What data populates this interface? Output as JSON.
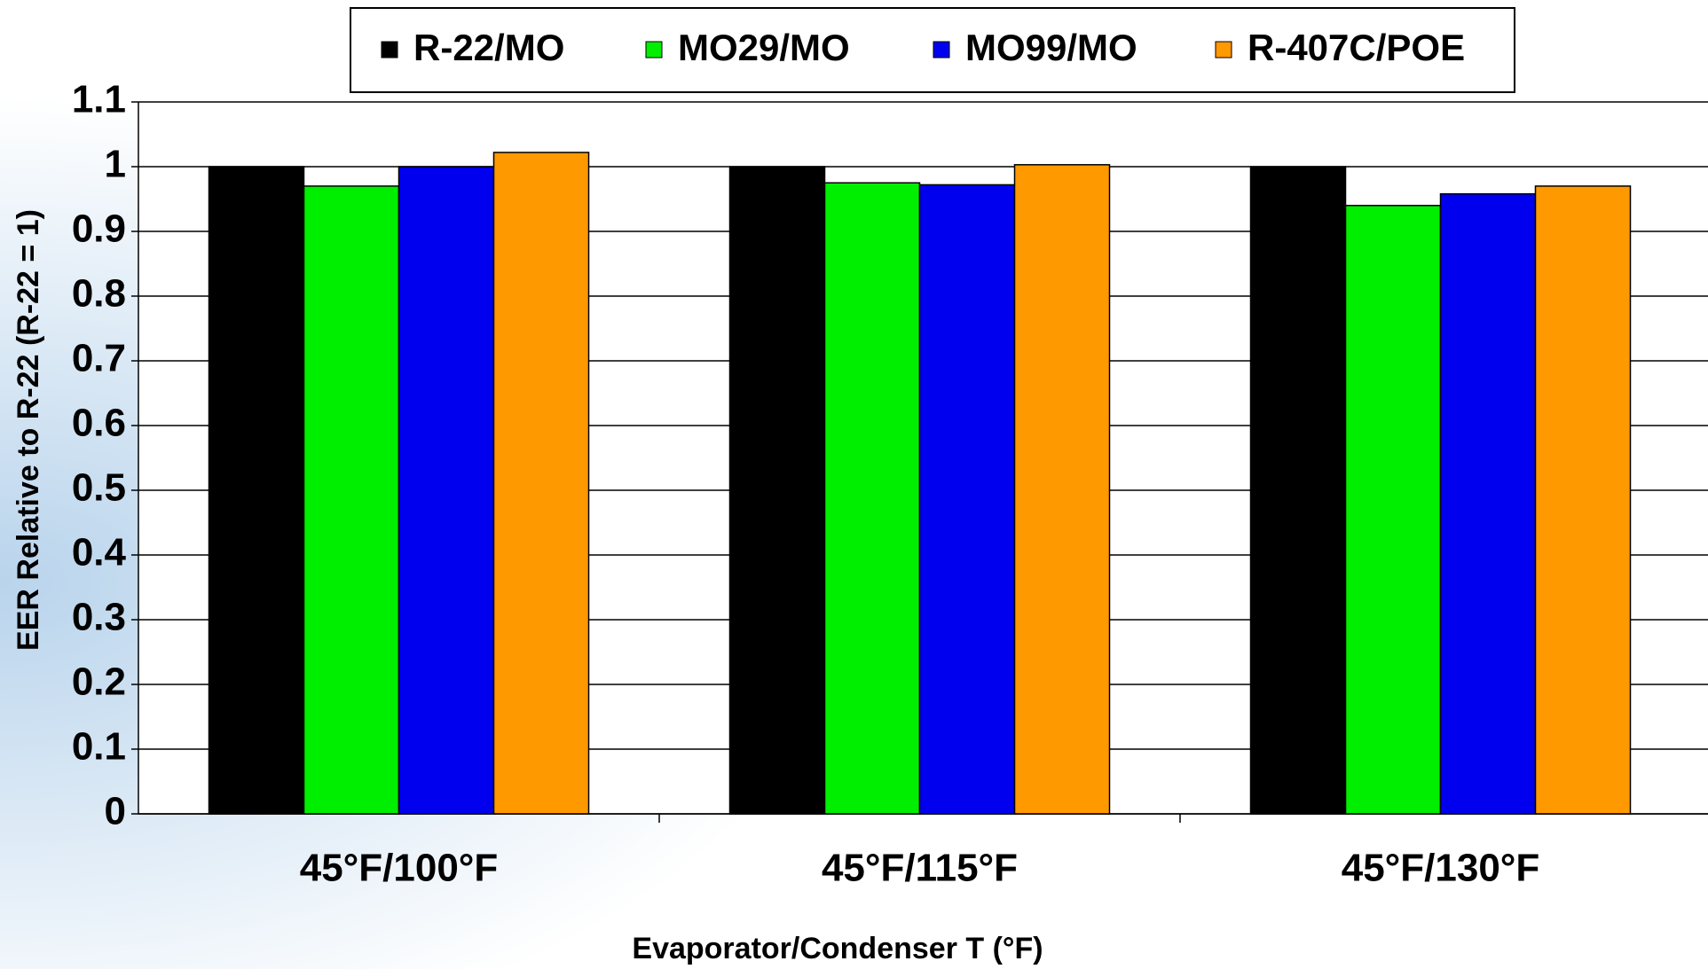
{
  "chart_data": {
    "type": "bar",
    "x_label": "Evaporator/Condenser T (°F)",
    "y_label": "EER Relative to R-22 (R-22 = 1)",
    "categories": [
      "45°F/100°F",
      "45°F/115°F",
      "45°F/130°F"
    ],
    "series": [
      {
        "name": "R-22/MO",
        "color": "#000000",
        "values": [
          1.0,
          1.0,
          1.0
        ]
      },
      {
        "name": "MO29/MO",
        "color": "#00ee00",
        "values": [
          0.97,
          0.975,
          0.94
        ]
      },
      {
        "name": "MO99/MO",
        "color": "#0000ee",
        "values": [
          1.0,
          0.972,
          0.958
        ]
      },
      {
        "name": "R-407C/POE",
        "color": "#ff9900",
        "values": [
          1.022,
          1.003,
          0.97
        ]
      }
    ],
    "ylim": [
      0,
      1.1
    ],
    "yticks": [
      0,
      0.1,
      0.2,
      0.3,
      0.4,
      0.5,
      0.6,
      0.7,
      0.8,
      0.9,
      1,
      1.1
    ],
    "grid": true,
    "legend": "top"
  }
}
